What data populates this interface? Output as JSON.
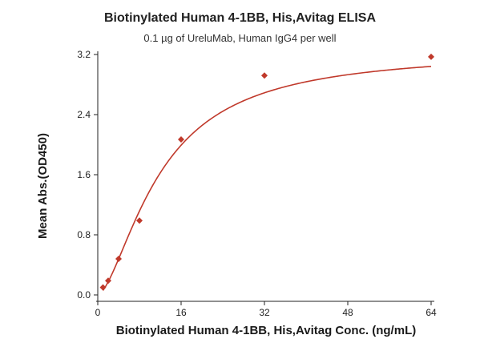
{
  "chart_data": {
    "type": "scatter",
    "title": "Biotinylated Human 4-1BB, His,Avitag ELISA",
    "subtitle": "0.1 µg of UreluMab, Human IgG4 per well",
    "xlabel": "Biotinylated Human 4-1BB, His,Avitag Conc. (ng/mL)",
    "ylabel": "Mean Abs.(OD450)",
    "xlim": [
      0,
      64
    ],
    "ylim": [
      0,
      3.2
    ],
    "xticks": [
      0,
      16,
      32,
      48,
      64
    ],
    "xtick_labels": [
      "0",
      "16",
      "32",
      "48",
      "64"
    ],
    "yticks": [
      0.0,
      0.8,
      1.6,
      2.4,
      3.2
    ],
    "ytick_labels": [
      "0.0",
      "0.8",
      "1.6",
      "2.4",
      "3.2"
    ],
    "grid": false,
    "series": [
      {
        "color": "#c0392b",
        "marker": "diamond",
        "points": [
          {
            "x": 1.0,
            "y": 0.1
          },
          {
            "x": 2.0,
            "y": 0.19
          },
          {
            "x": 4.0,
            "y": 0.48
          },
          {
            "x": 8.0,
            "y": 0.99
          },
          {
            "x": 16.0,
            "y": 2.07
          },
          {
            "x": 32.0,
            "y": 2.92
          },
          {
            "x": 64.0,
            "y": 3.17
          }
        ],
        "fit": {
          "kind": "4PL",
          "bottom": 0.0,
          "top": 3.25,
          "ec50": 12.0,
          "hill": 1.6
        }
      }
    ]
  }
}
